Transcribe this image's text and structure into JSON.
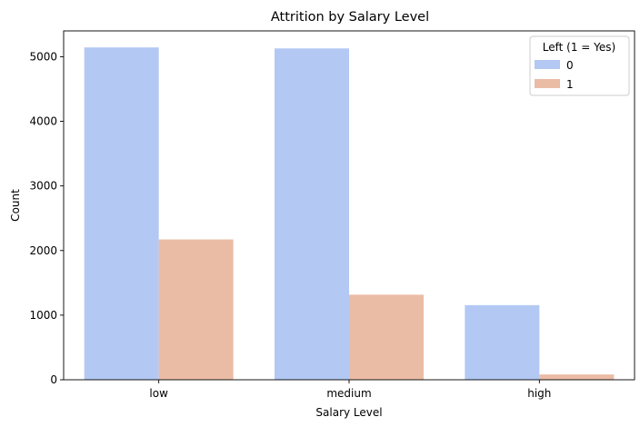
{
  "chart_data": {
    "type": "bar",
    "title": "Attrition by Salary Level",
    "xlabel": "Salary Level",
    "ylabel": "Count",
    "categories": [
      "low",
      "medium",
      "high"
    ],
    "series": [
      {
        "name": "0",
        "values": [
          5144,
          5129,
          1155
        ],
        "color": "#b3c9f4"
      },
      {
        "name": "1",
        "values": [
          2172,
          1317,
          82
        ],
        "color": "#ebbca5"
      }
    ],
    "ylim": [
      0,
      5400
    ],
    "yticks": [
      0,
      1000,
      2000,
      3000,
      4000,
      5000
    ],
    "ytick_labels": [
      "0",
      "1000",
      "2000",
      "3000",
      "4000",
      "5000"
    ],
    "legend": {
      "title": "Left (1 = Yes)",
      "placement": "top-right",
      "entries": [
        "0",
        "1"
      ]
    },
    "grid": false
  }
}
